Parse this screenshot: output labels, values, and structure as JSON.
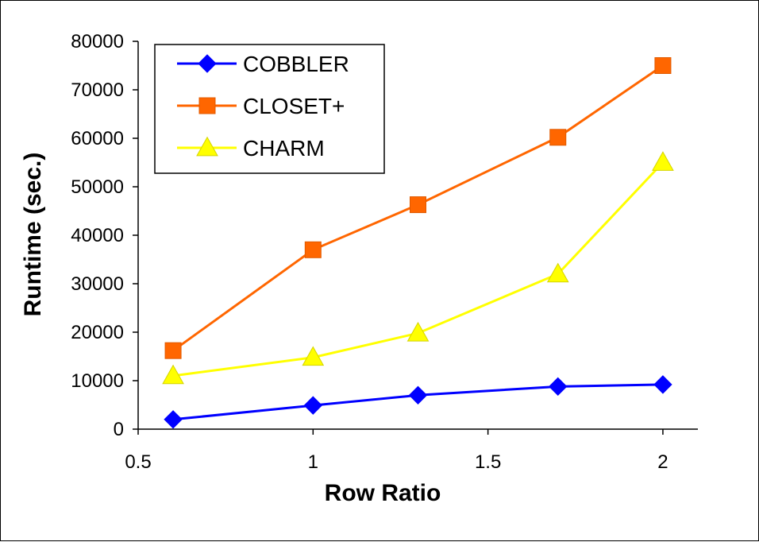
{
  "chart_data": {
    "type": "line",
    "title": "",
    "xlabel": "Row Ratio",
    "ylabel": "Runtime (sec.)",
    "xlim": [
      0.5,
      2.1
    ],
    "ylim": [
      0,
      80000
    ],
    "xticks": [
      0.5,
      1,
      1.5,
      2
    ],
    "xtick_labels": [
      "0.5",
      "1",
      "1.5",
      "2"
    ],
    "yticks": [
      0,
      10000,
      20000,
      30000,
      40000,
      50000,
      60000,
      70000,
      80000
    ],
    "ytick_labels": [
      "0",
      "10000",
      "20000",
      "30000",
      "40000",
      "50000",
      "60000",
      "70000",
      "80000"
    ],
    "grid": false,
    "legend_position": "top-left",
    "series": [
      {
        "name": "COBBLER",
        "color": "#0000ff",
        "marker": "diamond",
        "x": [
          0.6,
          1,
          1.3,
          1.7,
          2
        ],
        "y": [
          2000,
          4900,
          7000,
          8800,
          9200
        ]
      },
      {
        "name": "CLOSET+",
        "color": "#ff6600",
        "marker": "square",
        "x": [
          0.6,
          1,
          1.3,
          1.7,
          2
        ],
        "y": [
          16200,
          37000,
          46300,
          60200,
          75000
        ]
      },
      {
        "name": "CHARM",
        "color": "#ffff00",
        "marker": "triangle",
        "x": [
          0.6,
          1,
          1.3,
          1.7,
          2
        ],
        "y": [
          11000,
          14800,
          19800,
          32000,
          55000
        ]
      }
    ]
  }
}
